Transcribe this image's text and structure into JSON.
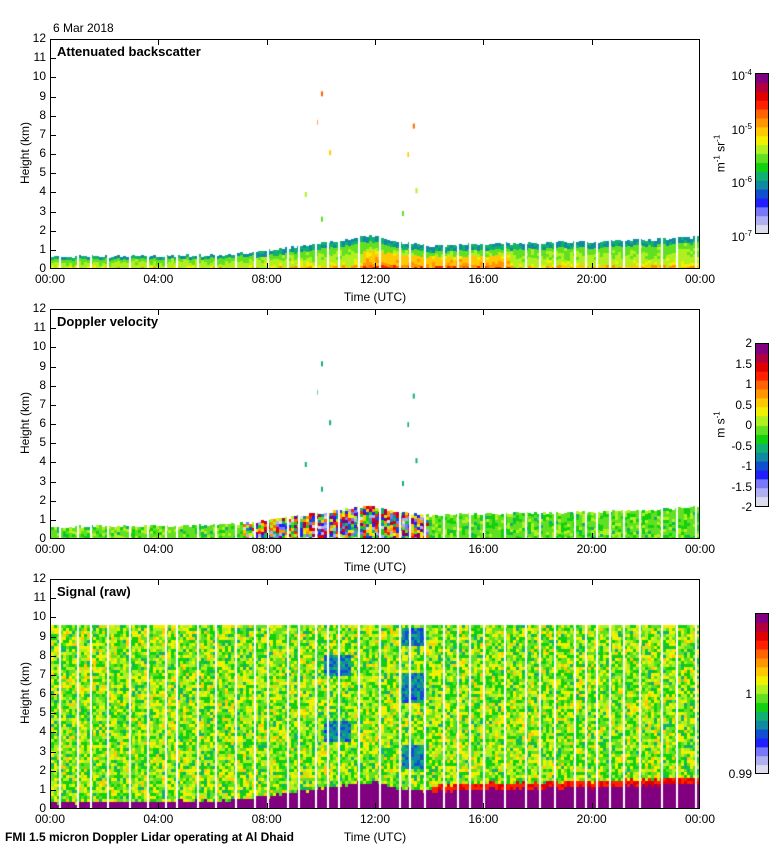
{
  "date_label": "6 Mar 2018",
  "footer": "FMI 1.5 micron Doppler Lidar operating at Al Dhaid",
  "colormap": [
    "#dcdcec",
    "#b0b0f0",
    "#7878f8",
    "#2020ff",
    "#1050d0",
    "#108aa0",
    "#10b070",
    "#10d010",
    "#60e020",
    "#b0f020",
    "#f0f000",
    "#ffc800",
    "#ff9600",
    "#ff6400",
    "#ff2000",
    "#e00000",
    "#b00040",
    "#800080"
  ],
  "chart_data": [
    {
      "type": "heatmap",
      "title": "Attenuated backscatter",
      "xlabel": "Time (UTC)",
      "ylabel": "Height (km)",
      "x_ticks": [
        "00:00",
        "04:00",
        "08:00",
        "12:00",
        "16:00",
        "20:00",
        "00:00"
      ],
      "x_range_hours": [
        0,
        24
      ],
      "y_ticks": [
        "0",
        "1",
        "2",
        "3",
        "4",
        "5",
        "6",
        "7",
        "8",
        "9",
        "10",
        "11",
        "12"
      ],
      "ylim": [
        0,
        12
      ],
      "colorbar": {
        "label": "m-1 sr-1",
        "ticks": [
          "10-4",
          "10-5",
          "10-6",
          "10-7"
        ],
        "range": [
          1e-07,
          0.0001
        ],
        "scale": "log"
      },
      "boundary_layer_top_km": {
        "hours": [
          0,
          2,
          4,
          6,
          7,
          8,
          9,
          10,
          11,
          11.5,
          12,
          13,
          14,
          16,
          18,
          20,
          22,
          24
        ],
        "km": [
          0.55,
          0.6,
          0.6,
          0.65,
          0.75,
          0.9,
          1.1,
          1.3,
          1.5,
          1.65,
          1.6,
          1.3,
          1.15,
          1.25,
          1.3,
          1.35,
          1.45,
          1.6
        ]
      },
      "cloud_features": [
        {
          "hour": 10.0,
          "km": 9.3,
          "level": "orange"
        },
        {
          "hour": 9.8,
          "km": 7.8,
          "level": "orange"
        },
        {
          "hour": 10.3,
          "km": 6.2,
          "level": "yellow"
        },
        {
          "hour": 9.4,
          "km": 4.0,
          "level": "light-green"
        },
        {
          "hour": 10.0,
          "km": 2.7,
          "level": "green"
        },
        {
          "hour": 13.4,
          "km": 7.6,
          "level": "orange"
        },
        {
          "hour": 13.2,
          "km": 6.1,
          "level": "yellow"
        },
        {
          "hour": 13.5,
          "km": 4.2,
          "level": "light-green"
        },
        {
          "hour": 13.0,
          "km": 3.0,
          "level": "green"
        }
      ]
    },
    {
      "type": "heatmap",
      "title": "Doppler velocity",
      "xlabel": "Time (UTC)",
      "ylabel": "Height (km)",
      "x_ticks": [
        "00:00",
        "04:00",
        "08:00",
        "12:00",
        "16:00",
        "20:00",
        "00:00"
      ],
      "x_range_hours": [
        0,
        24
      ],
      "y_ticks": [
        "0",
        "1",
        "2",
        "3",
        "4",
        "5",
        "6",
        "7",
        "8",
        "9",
        "10",
        "11",
        "12"
      ],
      "ylim": [
        0,
        12
      ],
      "colorbar": {
        "label": "m s-1",
        "ticks": [
          "2",
          "1.5",
          "1",
          "0.5",
          "0",
          "-0.5",
          "-1",
          "-1.5",
          "-2"
        ],
        "range": [
          -2,
          2
        ],
        "scale": "linear"
      },
      "turbulent_period_hours": [
        7,
        14
      ]
    },
    {
      "type": "heatmap",
      "title": "Signal (raw)",
      "xlabel": "Time (UTC)",
      "ylabel": "Height (km)",
      "x_ticks": [
        "00:00",
        "04:00",
        "08:00",
        "12:00",
        "16:00",
        "20:00",
        "00:00"
      ],
      "x_range_hours": [
        0,
        24
      ],
      "y_ticks": [
        "0",
        "1",
        "2",
        "3",
        "4",
        "5",
        "6",
        "7",
        "8",
        "9",
        "10",
        "11",
        "12"
      ],
      "ylim": [
        0,
        12
      ],
      "colorbar": {
        "label": "",
        "ticks": [
          "1",
          "0.99"
        ],
        "range": [
          0.99,
          1.01
        ],
        "scale": "linear"
      },
      "data_top_km": 9.6,
      "low_signal_blocks": [
        {
          "hours": [
            10.1,
            11.0
          ],
          "km": [
            7.0,
            8.2
          ]
        },
        {
          "hours": [
            10.1,
            11.0
          ],
          "km": [
            3.6,
            4.6
          ]
        },
        {
          "hours": [
            13.0,
            13.8
          ],
          "km": [
            5.6,
            7.2
          ]
        },
        {
          "hours": [
            13.0,
            13.8
          ],
          "km": [
            2.2,
            3.4
          ]
        },
        {
          "hours": [
            13.0,
            13.8
          ],
          "km": [
            8.6,
            9.6
          ]
        }
      ]
    }
  ]
}
